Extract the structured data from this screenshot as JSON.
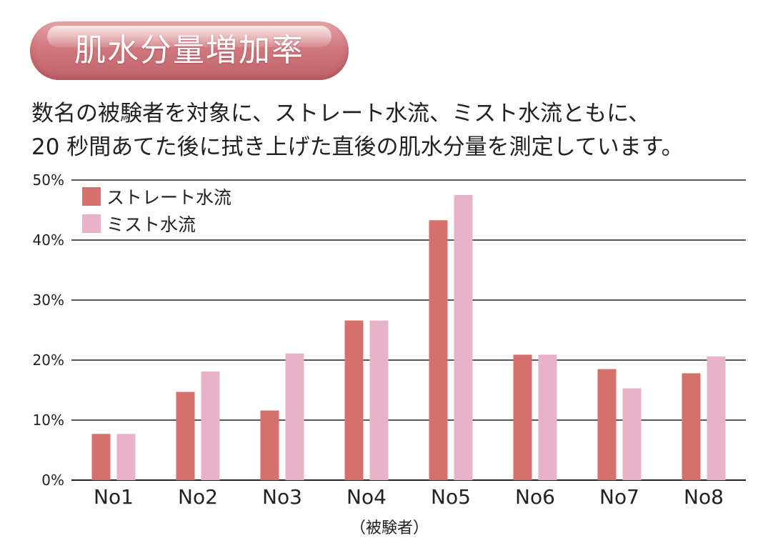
{
  "header": {
    "title": "肌水分量増加率"
  },
  "description": {
    "line1": "数名の被験者を対象に、ストレート水流、ミスト水流ともに、",
    "line2": "20 秒間あてた後に拭き上げた直後の肌水分量を測定しています。"
  },
  "chart_data": {
    "type": "bar",
    "title": "肌水分量増加率",
    "xlabel": "（被験者）",
    "ylabel": "",
    "ylim": [
      0,
      50
    ],
    "y_ticks": [
      "0%",
      "10%",
      "20%",
      "30%",
      "40%",
      "50%"
    ],
    "grid": true,
    "legend_position": "top-left",
    "categories": [
      "No1",
      "No2",
      "No3",
      "No4",
      "No5",
      "No6",
      "No7",
      "No8"
    ],
    "series": [
      {
        "name": "ストレート水流",
        "color": "#d6706d",
        "values": [
          7.7,
          14.7,
          11.6,
          26.6,
          43.3,
          20.9,
          18.5,
          17.8
        ]
      },
      {
        "name": "ミスト水流",
        "color": "#e8b3c9",
        "values": [
          7.7,
          18.1,
          21.1,
          26.6,
          47.5,
          20.9,
          15.3,
          20.6
        ]
      }
    ]
  }
}
